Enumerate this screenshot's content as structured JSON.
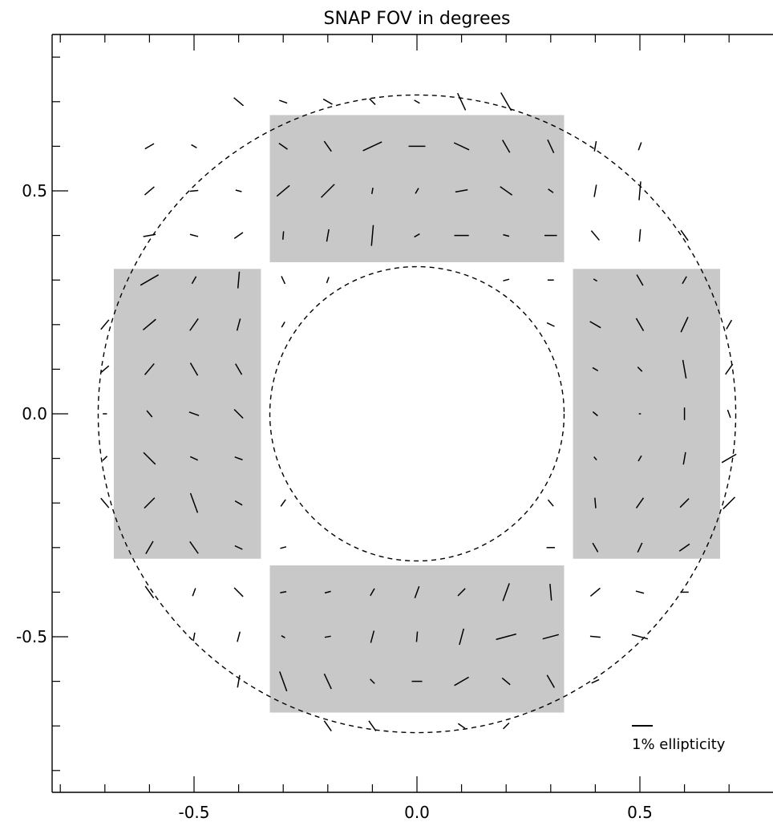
{
  "chart_data": {
    "type": "scatter",
    "title": "SNAP FOV in degrees",
    "xlabel": "",
    "ylabel": "",
    "xlim": [
      -0.85,
      0.85
    ],
    "ylim": [
      -0.85,
      0.85
    ],
    "x_ticks": [
      -0.5,
      0.0,
      0.5
    ],
    "x_tick_labels": [
      "-0.5",
      "0.0",
      "0.5"
    ],
    "y_ticks": [
      -0.5,
      0.0,
      0.5
    ],
    "y_tick_labels": [
      "-0.5",
      "0.0",
      "0.5"
    ],
    "minor_tick_step": 0.1,
    "grid": false,
    "outer_circle_radius": 0.715,
    "inner_circle_radius": 0.33,
    "circle_style": "dashed",
    "detector_regions": [
      {
        "name": "top",
        "x": [
          -0.33,
          0.33
        ],
        "y": [
          0.34,
          0.67
        ]
      },
      {
        "name": "bottom",
        "x": [
          -0.33,
          0.33
        ],
        "y": [
          -0.67,
          -0.34
        ]
      },
      {
        "name": "left",
        "x": [
          -0.68,
          -0.35
        ],
        "y": [
          -0.325,
          0.325
        ]
      },
      {
        "name": "right",
        "x": [
          0.35,
          0.68
        ],
        "y": [
          -0.325,
          0.325
        ]
      }
    ],
    "region_color": "#c8c8c8",
    "legend": {
      "label": "1% ellipticity",
      "position": "bottom-right"
    },
    "whiskers": [
      {
        "x": -0.3,
        "y": 0.6,
        "angle": -35,
        "length": 0.5
      },
      {
        "x": -0.2,
        "y": 0.6,
        "angle": -55,
        "length": 0.6
      },
      {
        "x": -0.1,
        "y": 0.6,
        "angle": 25,
        "length": 1.0
      },
      {
        "x": 0.0,
        "y": 0.6,
        "angle": 0,
        "length": 0.8
      },
      {
        "x": 0.1,
        "y": 0.6,
        "angle": -25,
        "length": 0.8
      },
      {
        "x": 0.2,
        "y": 0.6,
        "angle": -60,
        "length": 0.7
      },
      {
        "x": 0.3,
        "y": 0.6,
        "angle": -65,
        "length": 0.7
      },
      {
        "x": -0.3,
        "y": 0.5,
        "angle": 40,
        "length": 0.8
      },
      {
        "x": -0.2,
        "y": 0.5,
        "angle": 45,
        "length": 0.9
      },
      {
        "x": -0.1,
        "y": 0.5,
        "angle": 80,
        "length": 0.3
      },
      {
        "x": 0.0,
        "y": 0.5,
        "angle": 60,
        "length": 0.3
      },
      {
        "x": 0.1,
        "y": 0.5,
        "angle": 10,
        "length": 0.6
      },
      {
        "x": 0.2,
        "y": 0.5,
        "angle": -35,
        "length": 0.7
      },
      {
        "x": 0.3,
        "y": 0.5,
        "angle": -35,
        "length": 0.3
      },
      {
        "x": -0.3,
        "y": 0.4,
        "angle": 85,
        "length": 0.4
      },
      {
        "x": -0.2,
        "y": 0.4,
        "angle": 80,
        "length": 0.6
      },
      {
        "x": -0.1,
        "y": 0.4,
        "angle": 85,
        "length": 1.0
      },
      {
        "x": 0.0,
        "y": 0.4,
        "angle": 30,
        "length": 0.3
      },
      {
        "x": 0.1,
        "y": 0.4,
        "angle": 0,
        "length": 0.7
      },
      {
        "x": 0.2,
        "y": 0.4,
        "angle": -15,
        "length": 0.3
      },
      {
        "x": 0.3,
        "y": 0.4,
        "angle": 0,
        "length": 0.6
      },
      {
        "x": -0.3,
        "y": -0.4,
        "angle": 10,
        "length": 0.3
      },
      {
        "x": -0.2,
        "y": -0.4,
        "angle": 15,
        "length": 0.3
      },
      {
        "x": -0.1,
        "y": -0.4,
        "angle": 60,
        "length": 0.4
      },
      {
        "x": 0.0,
        "y": -0.4,
        "angle": 70,
        "length": 0.6
      },
      {
        "x": 0.1,
        "y": -0.4,
        "angle": 45,
        "length": 0.5
      },
      {
        "x": 0.2,
        "y": -0.4,
        "angle": 70,
        "length": 0.9
      },
      {
        "x": 0.3,
        "y": -0.4,
        "angle": -85,
        "length": 0.8
      },
      {
        "x": -0.3,
        "y": -0.5,
        "angle": -30,
        "length": 0.2
      },
      {
        "x": -0.2,
        "y": -0.5,
        "angle": 10,
        "length": 0.3
      },
      {
        "x": -0.1,
        "y": -0.5,
        "angle": 75,
        "length": 0.6
      },
      {
        "x": 0.0,
        "y": -0.5,
        "angle": 85,
        "length": 0.5
      },
      {
        "x": 0.1,
        "y": -0.5,
        "angle": 75,
        "length": 0.8
      },
      {
        "x": 0.2,
        "y": -0.5,
        "angle": 15,
        "length": 1.0
      },
      {
        "x": 0.3,
        "y": -0.5,
        "angle": 15,
        "length": 0.8
      },
      {
        "x": -0.3,
        "y": -0.6,
        "angle": -70,
        "length": 1.0
      },
      {
        "x": -0.2,
        "y": -0.6,
        "angle": -65,
        "length": 0.8
      },
      {
        "x": -0.1,
        "y": -0.6,
        "angle": -45,
        "length": 0.3
      },
      {
        "x": 0.0,
        "y": -0.6,
        "angle": 0,
        "length": 0.5
      },
      {
        "x": 0.1,
        "y": -0.6,
        "angle": 30,
        "length": 0.8
      },
      {
        "x": 0.2,
        "y": -0.6,
        "angle": -40,
        "length": 0.5
      },
      {
        "x": 0.3,
        "y": -0.6,
        "angle": -60,
        "length": 0.7
      },
      {
        "x": -0.6,
        "y": 0.3,
        "angle": 30,
        "length": 1.0
      },
      {
        "x": -0.5,
        "y": 0.3,
        "angle": 60,
        "length": 0.4
      },
      {
        "x": -0.4,
        "y": 0.3,
        "angle": 85,
        "length": 0.8
      },
      {
        "x": -0.6,
        "y": 0.2,
        "angle": 40,
        "length": 0.8
      },
      {
        "x": -0.5,
        "y": 0.2,
        "angle": 55,
        "length": 0.7
      },
      {
        "x": -0.4,
        "y": 0.2,
        "angle": 75,
        "length": 0.6
      },
      {
        "x": -0.6,
        "y": 0.1,
        "angle": 50,
        "length": 0.7
      },
      {
        "x": -0.5,
        "y": 0.1,
        "angle": -60,
        "length": 0.7
      },
      {
        "x": -0.4,
        "y": 0.1,
        "angle": -60,
        "length": 0.6
      },
      {
        "x": -0.6,
        "y": 0.0,
        "angle": -50,
        "length": 0.4
      },
      {
        "x": -0.5,
        "y": 0.0,
        "angle": -20,
        "length": 0.5
      },
      {
        "x": -0.4,
        "y": 0.0,
        "angle": -45,
        "length": 0.6
      },
      {
        "x": -0.6,
        "y": -0.1,
        "angle": -45,
        "length": 0.8
      },
      {
        "x": -0.5,
        "y": -0.1,
        "angle": -25,
        "length": 0.4
      },
      {
        "x": -0.4,
        "y": -0.1,
        "angle": -20,
        "length": 0.4
      },
      {
        "x": -0.6,
        "y": -0.2,
        "angle": 45,
        "length": 0.7
      },
      {
        "x": -0.5,
        "y": -0.2,
        "angle": -70,
        "length": 1.0
      },
      {
        "x": -0.4,
        "y": -0.2,
        "angle": -30,
        "length": 0.4
      },
      {
        "x": -0.6,
        "y": -0.3,
        "angle": 60,
        "length": 0.7
      },
      {
        "x": -0.5,
        "y": -0.3,
        "angle": -55,
        "length": 0.7
      },
      {
        "x": -0.4,
        "y": -0.3,
        "angle": -25,
        "length": 0.4
      },
      {
        "x": 0.4,
        "y": 0.3,
        "angle": -30,
        "length": 0.2
      },
      {
        "x": 0.5,
        "y": 0.3,
        "angle": -60,
        "length": 0.6
      },
      {
        "x": 0.6,
        "y": 0.3,
        "angle": 60,
        "length": 0.4
      },
      {
        "x": 0.4,
        "y": 0.2,
        "angle": -30,
        "length": 0.6
      },
      {
        "x": 0.5,
        "y": 0.2,
        "angle": -60,
        "length": 0.7
      },
      {
        "x": 0.6,
        "y": 0.2,
        "angle": 65,
        "length": 0.8
      },
      {
        "x": 0.4,
        "y": 0.1,
        "angle": -30,
        "length": 0.3
      },
      {
        "x": 0.5,
        "y": 0.1,
        "angle": -45,
        "length": 0.3
      },
      {
        "x": 0.6,
        "y": 0.1,
        "angle": -80,
        "length": 0.9
      },
      {
        "x": 0.4,
        "y": 0.0,
        "angle": -40,
        "length": 0.3
      },
      {
        "x": 0.5,
        "y": 0.0,
        "angle": 0,
        "length": 0.1
      },
      {
        "x": 0.6,
        "y": 0.0,
        "angle": 90,
        "length": 0.6
      },
      {
        "x": 0.4,
        "y": -0.1,
        "angle": -50,
        "length": 0.2
      },
      {
        "x": 0.5,
        "y": -0.1,
        "angle": 60,
        "length": 0.3
      },
      {
        "x": 0.6,
        "y": -0.1,
        "angle": 80,
        "length": 0.6
      },
      {
        "x": 0.4,
        "y": -0.2,
        "angle": -85,
        "length": 0.5
      },
      {
        "x": 0.5,
        "y": -0.2,
        "angle": 55,
        "length": 0.6
      },
      {
        "x": 0.6,
        "y": -0.2,
        "angle": 45,
        "length": 0.6
      },
      {
        "x": 0.4,
        "y": -0.3,
        "angle": -60,
        "length": 0.5
      },
      {
        "x": 0.5,
        "y": -0.3,
        "angle": 65,
        "length": 0.5
      },
      {
        "x": 0.6,
        "y": -0.3,
        "angle": 35,
        "length": 0.6
      },
      {
        "x": -0.4,
        "y": 0.7,
        "angle": -40,
        "length": 0.6
      },
      {
        "x": -0.3,
        "y": 0.7,
        "angle": -20,
        "length": 0.4
      },
      {
        "x": -0.2,
        "y": 0.7,
        "angle": -30,
        "length": 0.5
      },
      {
        "x": -0.1,
        "y": 0.7,
        "angle": -45,
        "length": 0.4
      },
      {
        "x": 0.0,
        "y": 0.7,
        "angle": -30,
        "length": 0.3
      },
      {
        "x": 0.1,
        "y": 0.7,
        "angle": -65,
        "length": 0.9
      },
      {
        "x": 0.2,
        "y": 0.7,
        "angle": -60,
        "length": 1.0
      },
      {
        "x": -0.6,
        "y": 0.6,
        "angle": 30,
        "length": 0.5
      },
      {
        "x": -0.5,
        "y": 0.6,
        "angle": -30,
        "length": 0.3
      },
      {
        "x": 0.4,
        "y": 0.6,
        "angle": 80,
        "length": 0.5
      },
      {
        "x": 0.5,
        "y": 0.6,
        "angle": 70,
        "length": 0.4
      },
      {
        "x": -0.6,
        "y": 0.5,
        "angle": 40,
        "length": 0.6
      },
      {
        "x": -0.5,
        "y": 0.5,
        "angle": 5,
        "length": 0.4
      },
      {
        "x": -0.4,
        "y": 0.5,
        "angle": -15,
        "length": 0.3
      },
      {
        "x": 0.4,
        "y": 0.5,
        "angle": 80,
        "length": 0.6
      },
      {
        "x": 0.5,
        "y": 0.5,
        "angle": 85,
        "length": 0.9
      },
      {
        "x": -0.6,
        "y": 0.4,
        "angle": 10,
        "length": 0.6
      },
      {
        "x": -0.5,
        "y": 0.4,
        "angle": -15,
        "length": 0.4
      },
      {
        "x": -0.4,
        "y": 0.4,
        "angle": 35,
        "length": 0.5
      },
      {
        "x": 0.4,
        "y": 0.4,
        "angle": -50,
        "length": 0.6
      },
      {
        "x": 0.5,
        "y": 0.4,
        "angle": 85,
        "length": 0.6
      },
      {
        "x": 0.6,
        "y": 0.4,
        "angle": -55,
        "length": 0.6
      },
      {
        "x": -0.7,
        "y": 0.2,
        "angle": 50,
        "length": 0.6
      },
      {
        "x": 0.7,
        "y": 0.2,
        "angle": 60,
        "length": 0.5
      },
      {
        "x": -0.7,
        "y": 0.1,
        "angle": 40,
        "length": 0.5
      },
      {
        "x": 0.7,
        "y": 0.1,
        "angle": 55,
        "length": 0.6
      },
      {
        "x": -0.7,
        "y": 0.0,
        "angle": 0,
        "length": 0.2
      },
      {
        "x": 0.7,
        "y": 0.0,
        "angle": -70,
        "length": 0.4
      },
      {
        "x": -0.7,
        "y": -0.1,
        "angle": 45,
        "length": 0.3
      },
      {
        "x": 0.7,
        "y": -0.1,
        "angle": 30,
        "length": 0.8
      },
      {
        "x": -0.7,
        "y": -0.2,
        "angle": -50,
        "length": 0.6
      },
      {
        "x": 0.7,
        "y": -0.2,
        "angle": 45,
        "length": 0.8
      },
      {
        "x": -0.3,
        "y": 0.3,
        "angle": -65,
        "length": 0.4
      },
      {
        "x": -0.2,
        "y": 0.3,
        "angle": 70,
        "length": 0.3
      },
      {
        "x": 0.2,
        "y": 0.3,
        "angle": 15,
        "length": 0.3
      },
      {
        "x": 0.3,
        "y": 0.3,
        "angle": 0,
        "length": 0.3
      },
      {
        "x": -0.3,
        "y": 0.2,
        "angle": 60,
        "length": 0.3
      },
      {
        "x": 0.3,
        "y": 0.2,
        "angle": -25,
        "length": 0.4
      },
      {
        "x": -0.3,
        "y": -0.2,
        "angle": 55,
        "length": 0.4
      },
      {
        "x": 0.3,
        "y": -0.2,
        "angle": -50,
        "length": 0.4
      },
      {
        "x": -0.3,
        "y": -0.3,
        "angle": 15,
        "length": 0.3
      },
      {
        "x": 0.3,
        "y": -0.3,
        "angle": 0,
        "length": 0.4
      },
      {
        "x": -0.6,
        "y": -0.4,
        "angle": -55,
        "length": 0.7
      },
      {
        "x": -0.5,
        "y": -0.4,
        "angle": 70,
        "length": 0.4
      },
      {
        "x": -0.4,
        "y": -0.4,
        "angle": -45,
        "length": 0.6
      },
      {
        "x": 0.4,
        "y": -0.4,
        "angle": 40,
        "length": 0.6
      },
      {
        "x": 0.5,
        "y": -0.4,
        "angle": -15,
        "length": 0.4
      },
      {
        "x": 0.6,
        "y": -0.4,
        "angle": 0,
        "length": 0.4
      },
      {
        "x": -0.5,
        "y": -0.5,
        "angle": 80,
        "length": 0.4
      },
      {
        "x": -0.4,
        "y": -0.5,
        "angle": 75,
        "length": 0.5
      },
      {
        "x": 0.4,
        "y": -0.5,
        "angle": -5,
        "length": 0.5
      },
      {
        "x": 0.5,
        "y": -0.5,
        "angle": -15,
        "length": 0.8
      },
      {
        "x": -0.4,
        "y": -0.6,
        "angle": 80,
        "length": 0.6
      },
      {
        "x": 0.4,
        "y": -0.6,
        "angle": 25,
        "length": 0.4
      },
      {
        "x": -0.2,
        "y": -0.7,
        "angle": -55,
        "length": 0.6
      },
      {
        "x": -0.1,
        "y": -0.7,
        "angle": -55,
        "length": 0.6
      },
      {
        "x": 0.1,
        "y": -0.7,
        "angle": -35,
        "length": 0.4
      },
      {
        "x": 0.2,
        "y": -0.7,
        "angle": 45,
        "length": 0.4
      }
    ]
  }
}
